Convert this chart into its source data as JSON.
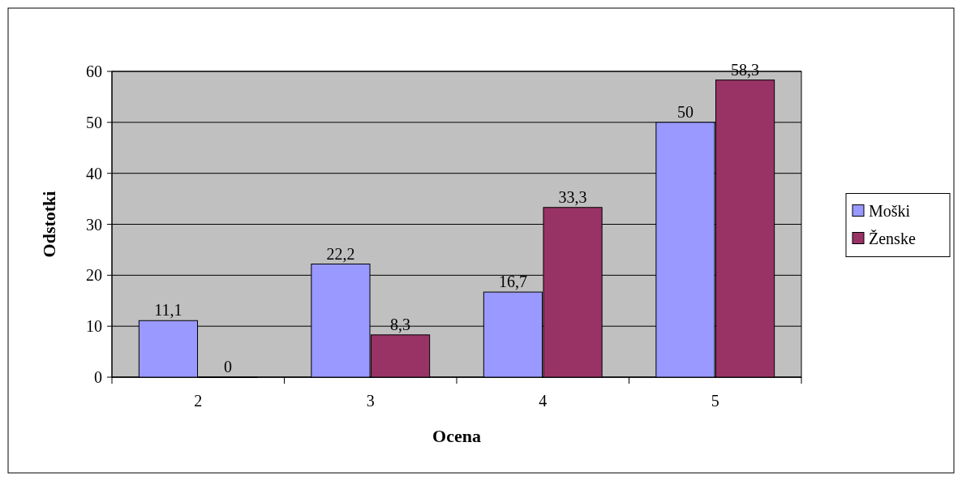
{
  "chart_data": {
    "type": "bar",
    "xlabel": "Ocena",
    "ylabel": "Odstotki",
    "categories": [
      "2",
      "3",
      "4",
      "5"
    ],
    "series": [
      {
        "name": "Moški",
        "color": "#9999ff",
        "values": [
          11.1,
          22.2,
          16.7,
          50
        ],
        "value_labels": [
          "11,1",
          "22,2",
          "16,7",
          "50"
        ]
      },
      {
        "name": "Ženske",
        "color": "#993366",
        "values": [
          0,
          8.3,
          33.3,
          58.3
        ],
        "value_labels": [
          "0",
          "8,3",
          "33,3",
          "58,3"
        ]
      }
    ],
    "ylim": [
      0,
      60
    ],
    "yticks": [
      0,
      10,
      20,
      30,
      40,
      50,
      60
    ],
    "grid": "y",
    "legend": "right"
  }
}
